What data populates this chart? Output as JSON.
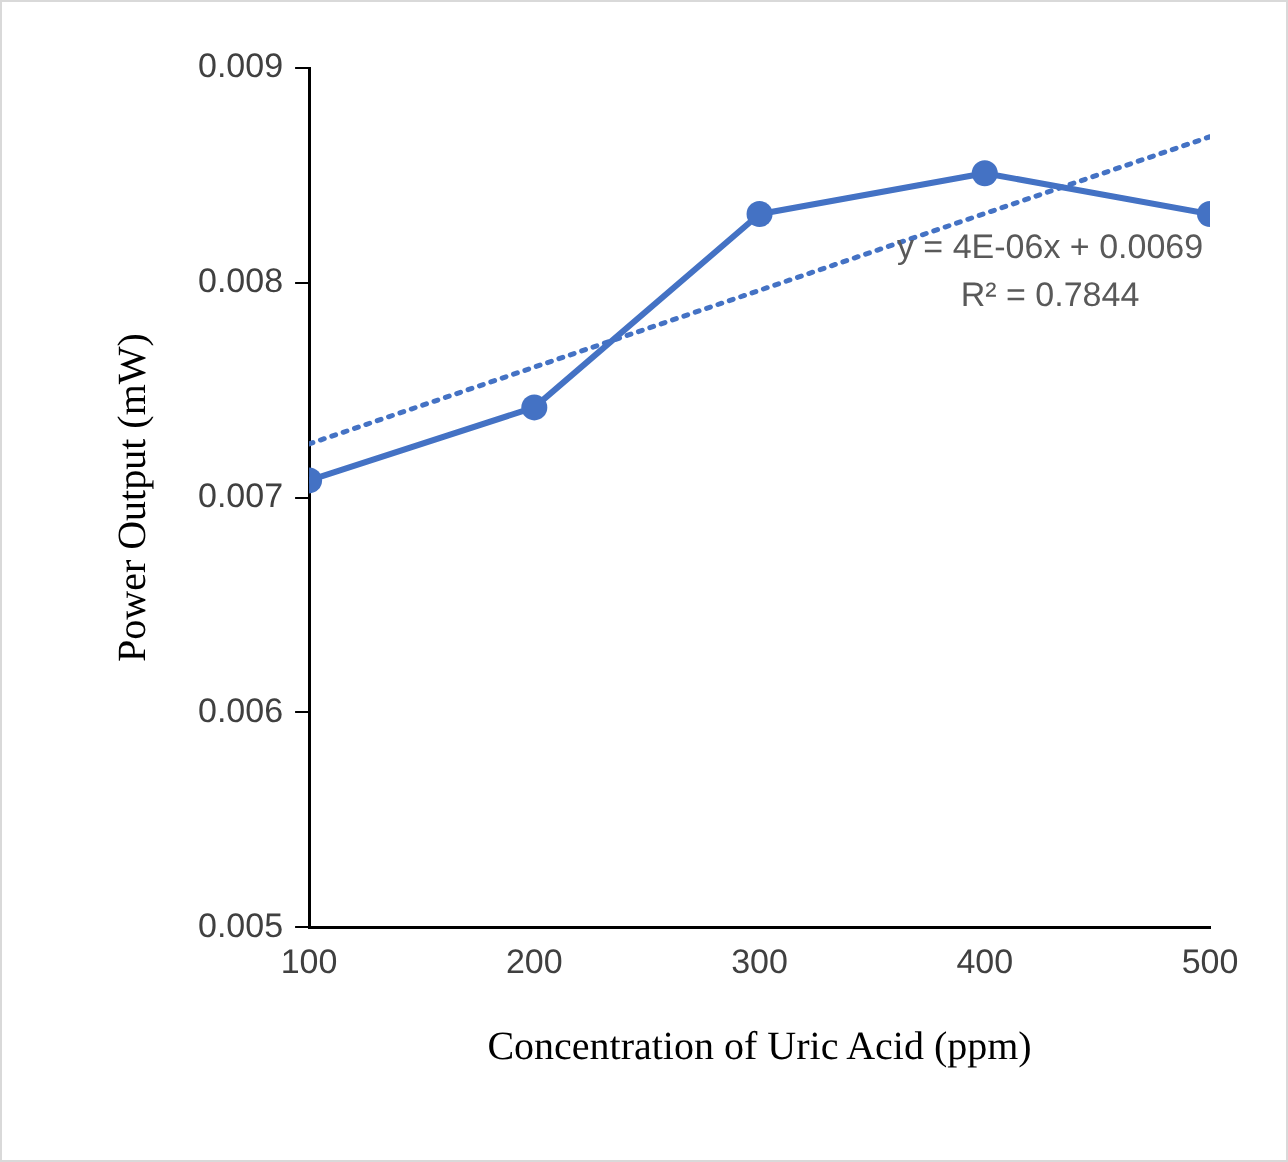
{
  "chart_data": {
    "type": "line",
    "xlabel": "Concentration of Uric Acid (ppm)",
    "ylabel": "Power Output (mW)",
    "x": [
      100,
      200,
      300,
      400,
      500
    ],
    "series": [
      {
        "color": "#4472c4",
        "values": [
          0.00708,
          0.00742,
          0.00832,
          0.00851,
          0.00832
        ],
        "marker": "circle",
        "line_style": "solid"
      },
      {
        "type": "line",
        "x": [
          100,
          500
        ],
        "color": "#4472c4",
        "values": [
          0.00725,
          0.00868
        ],
        "marker": "none",
        "line_style": "dotted"
      }
    ],
    "annotations": [
      "y = 4E-06x + 0.0069",
      "R² = 0.7844"
    ],
    "xlim": [
      100,
      500
    ],
    "xticks": [
      100,
      200,
      300,
      400,
      500
    ],
    "ylim": [
      0.005,
      0.009
    ],
    "yticks": [
      0.005,
      0.006,
      0.007,
      0.008,
      0.009
    ],
    "grid": false
  }
}
